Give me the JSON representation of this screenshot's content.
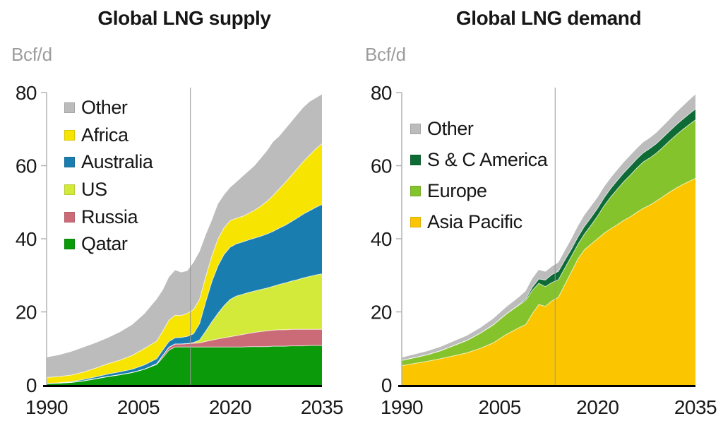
{
  "figure": {
    "background": "#ffffff",
    "colors": {
      "axis": "#b3b3b3",
      "baseline": "#000000",
      "divider": "#979797",
      "tick_text": "#191919",
      "unit_text": "#9c9c9c",
      "band_edge": "#ffffff"
    }
  },
  "chart_data": [
    {
      "key": "supply",
      "type": "area",
      "stacked": true,
      "title": "Global LNG supply",
      "ylabel": "Bcf/d",
      "xlabel": "",
      "ylim": [
        0,
        80
      ],
      "yticks": [
        0,
        20,
        40,
        60,
        80
      ],
      "xticks": [
        1990,
        2005,
        2020,
        2035
      ],
      "divider_year": 2013.5,
      "grid": false,
      "legend_position": "inside-top-left",
      "years": [
        1990,
        1992,
        1994,
        1996,
        1998,
        2000,
        2002,
        2004,
        2006,
        2008,
        2009,
        2010,
        2011,
        2012,
        2013,
        2014,
        2015,
        2016,
        2017,
        2018,
        2019,
        2020,
        2021,
        2022,
        2023,
        2024,
        2025,
        2026,
        2027,
        2028,
        2029,
        2030,
        2031,
        2032,
        2033,
        2034,
        2035
      ],
      "series": [
        {
          "name": "Qatar",
          "color": "#0a9a0a",
          "values": [
            0.4,
            0.5,
            0.7,
            1.1,
            1.7,
            2.3,
            2.8,
            3.4,
            4.3,
            5.6,
            7.5,
            9.5,
            10.4,
            10.4,
            10.4,
            10.4,
            10.4,
            10.4,
            10.4,
            10.4,
            10.4,
            10.4,
            10.4,
            10.4,
            10.45,
            10.5,
            10.5,
            10.5,
            10.6,
            10.6,
            10.6,
            10.7,
            10.7,
            10.7,
            10.8,
            10.8,
            10.8
          ]
        },
        {
          "name": "Russia",
          "color": "#cc6b78",
          "values": [
            0,
            0,
            0,
            0,
            0,
            0,
            0,
            0,
            0,
            0.2,
            0.6,
            0.8,
            0.8,
            0.8,
            0.9,
            1.0,
            1.1,
            1.5,
            1.85,
            2.2,
            2.5,
            2.8,
            3.1,
            3.4,
            3.65,
            3.9,
            4.1,
            4.3,
            4.4,
            4.5,
            4.5,
            4.5,
            4.5,
            4.5,
            4.4,
            4.4,
            4.4
          ]
        },
        {
          "name": "US",
          "color": "#d4ea3b",
          "values": [
            0,
            0,
            0,
            0,
            0,
            0,
            0,
            0,
            0,
            0,
            0,
            0,
            0,
            0,
            0,
            0.2,
            0.8,
            2.8,
            5.0,
            7.0,
            8.8,
            10.2,
            10.8,
            11.0,
            11.2,
            11.3,
            11.5,
            11.7,
            12.0,
            12.4,
            12.8,
            13.2,
            13.6,
            14.1,
            14.5,
            14.9,
            15.2
          ]
        },
        {
          "name": "Australia",
          "color": "#1a7db0",
          "values": [
            0.05,
            0.1,
            0.2,
            0.4,
            0.5,
            0.7,
            0.8,
            0.9,
            1.2,
            1.4,
            1.5,
            1.6,
            1.7,
            1.8,
            2.0,
            2.4,
            4.5,
            8.0,
            11.0,
            13.0,
            14.0,
            14.3,
            14.3,
            14.3,
            14.4,
            14.5,
            14.6,
            14.8,
            15.0,
            15.4,
            15.8,
            16.3,
            16.9,
            17.5,
            18.0,
            18.5,
            19.0
          ]
        },
        {
          "name": "Africa",
          "color": "#f7e400",
          "values": [
            1.6,
            1.7,
            1.8,
            2.0,
            2.4,
            2.8,
            3.2,
            3.8,
            4.5,
            4.8,
            5.2,
            5.8,
            6.2,
            6.0,
            6.3,
            6.6,
            6.6,
            6.8,
            7.0,
            7.3,
            7.3,
            7.2,
            7.0,
            7.0,
            7.2,
            7.6,
            8.2,
            8.9,
            9.8,
            10.7,
            11.7,
            12.6,
            13.5,
            14.4,
            15.2,
            16.0,
            16.6
          ]
        },
        {
          "name": "Other",
          "color": "#bcbcbc",
          "values": [
            5.5,
            5.9,
            6.4,
            6.8,
            6.9,
            7.1,
            7.7,
            8.4,
            9.5,
            11.5,
            11.2,
            11.8,
            12.3,
            11.8,
            11.6,
            12.9,
            13.1,
            11.5,
            9.8,
            9.6,
            9.0,
            9.1,
            9.9,
            10.9,
            11.6,
            12.2,
            13.1,
            13.8,
            14.7,
            14.4,
            14.6,
            14.7,
            14.8,
            14.8,
            14.6,
            13.9,
            13.5
          ]
        }
      ],
      "legend_order": [
        "Other",
        "Africa",
        "Australia",
        "US",
        "Russia",
        "Qatar"
      ]
    },
    {
      "key": "demand",
      "type": "area",
      "stacked": true,
      "title": "Global LNG demand",
      "ylabel": "Bcf/d",
      "xlabel": "",
      "ylim": [
        0,
        80
      ],
      "yticks": [
        0,
        20,
        40,
        60,
        80
      ],
      "xticks": [
        1990,
        2005,
        2020,
        2035
      ],
      "divider_year": 2013.5,
      "grid": false,
      "legend_position": "inside-top-left",
      "years": [
        1990,
        1992,
        1994,
        1996,
        1998,
        2000,
        2002,
        2004,
        2006,
        2008,
        2009,
        2010,
        2011,
        2012,
        2013,
        2014,
        2015,
        2016,
        2017,
        2018,
        2019,
        2020,
        2021,
        2022,
        2023,
        2024,
        2025,
        2026,
        2027,
        2028,
        2029,
        2030,
        2031,
        2032,
        2033,
        2034,
        2035
      ],
      "series": [
        {
          "name": "Asia Pacific",
          "color": "#fbc600",
          "values": [
            5.3,
            5.9,
            6.5,
            7.2,
            8.0,
            8.8,
            10.0,
            11.5,
            13.8,
            15.7,
            16.5,
            19.5,
            22.0,
            21.5,
            23.0,
            24.0,
            27.5,
            31.0,
            34.5,
            37.0,
            38.5,
            40.0,
            41.5,
            42.7,
            43.8,
            45.0,
            46.0,
            47.2,
            48.3,
            49.2,
            50.3,
            51.5,
            52.7,
            53.8,
            54.8,
            55.7,
            56.5
          ]
        },
        {
          "name": "Europe",
          "color": "#85c32c",
          "values": [
            1.4,
            1.6,
            1.8,
            2.2,
            2.8,
            3.4,
            4.1,
            4.9,
            5.6,
            6.2,
            6.6,
            6.4,
            5.8,
            5.4,
            5.0,
            4.8,
            4.5,
            4.2,
            4.0,
            4.3,
            5.2,
            6.2,
            7.5,
            8.7,
            9.7,
            10.6,
            11.4,
            12.1,
            12.7,
            12.9,
            13.1,
            13.5,
            14.0,
            14.5,
            15.0,
            15.5,
            16.0
          ]
        },
        {
          "name": "S & C America",
          "color": "#0f6b36",
          "values": [
            0,
            0,
            0,
            0,
            0,
            0,
            0,
            0,
            0,
            0.1,
            0.4,
            0.8,
            1.2,
            1.8,
            2.2,
            2.3,
            2.2,
            2.0,
            2.0,
            2.1,
            2.1,
            2.1,
            2.2,
            2.3,
            2.4,
            2.4,
            2.5,
            2.5,
            2.5,
            2.6,
            2.6,
            2.7,
            2.7,
            2.8,
            2.8,
            2.9,
            3.0
          ]
        },
        {
          "name": "Other",
          "color": "#bcbcbc",
          "values": [
            0.8,
            0.9,
            1.0,
            1.1,
            1.2,
            1.3,
            1.5,
            1.7,
            1.9,
            2.1,
            2.2,
            2.4,
            2.5,
            2.3,
            2.2,
            2.4,
            2.6,
            2.8,
            3.0,
            3.1,
            3.1,
            3.0,
            3.0,
            2.9,
            2.9,
            2.9,
            2.9,
            2.9,
            2.9,
            2.9,
            3.0,
            3.1,
            3.2,
            3.4,
            3.6,
            3.8,
            4.0
          ]
        }
      ],
      "legend_order": [
        "Other",
        "S & C America",
        "Europe",
        "Asia Pacific"
      ]
    }
  ]
}
